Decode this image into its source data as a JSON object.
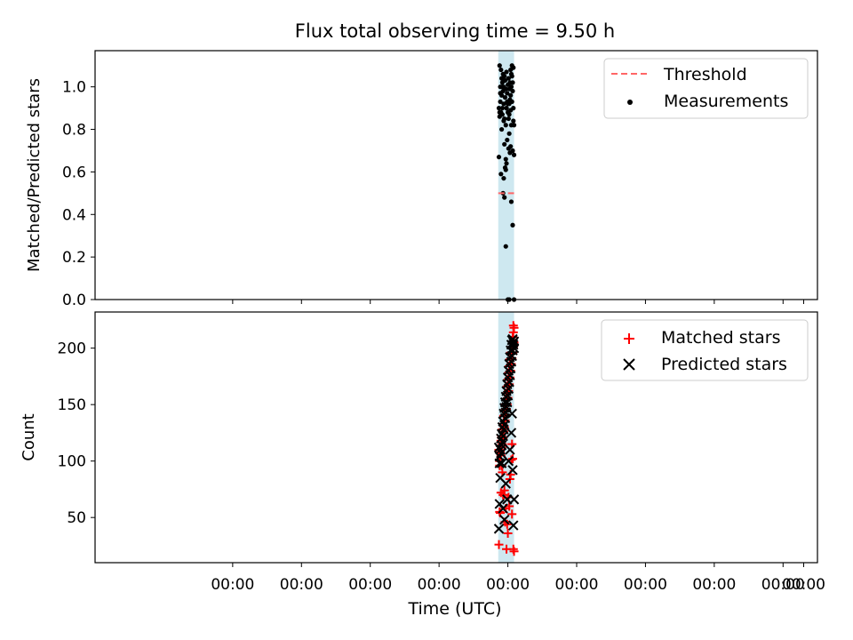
{
  "figure": {
    "title": "Flux total observing time = 9.50 h",
    "xlabel": "Time (UTC)",
    "xtick_labels": [
      "00:00",
      "00:00",
      "00:00",
      "00:00",
      "00:00",
      "00:00",
      "00:00",
      "00:00",
      "00:00",
      "00:00",
      "00:00"
    ]
  },
  "colors": {
    "shade": "#add8e6",
    "threshold": "#ff6666",
    "matched": "#ff0000",
    "predicted": "#000000",
    "measurements": "#000000"
  },
  "chart_data": [
    {
      "type": "scatter",
      "ylabel": "Matched/Predicted stars",
      "xlim": [
        -6,
        4.5
      ],
      "ylim": [
        0,
        1.17
      ],
      "yticks": [
        0.0,
        0.2,
        0.4,
        0.6,
        0.8,
        1.0
      ],
      "ytick_labels": [
        "0.0",
        "0.2",
        "0.4",
        "0.6",
        "0.8",
        "1.0"
      ],
      "shaded_span": [
        -0.14,
        0.09
      ],
      "legend": {
        "loc": "upper right",
        "entries": [
          "Threshold",
          "Measurements"
        ]
      },
      "threshold": {
        "name": "Threshold",
        "y": 0.5,
        "x": [
          -0.14,
          0.09
        ]
      },
      "series": [
        {
          "name": "Measurements",
          "x": [
            -0.13,
            -0.12,
            -0.12,
            -0.11,
            -0.11,
            -0.1,
            -0.1,
            -0.09,
            -0.09,
            -0.08,
            -0.08,
            -0.08,
            -0.07,
            -0.07,
            -0.06,
            -0.06,
            -0.05,
            -0.05,
            -0.05,
            -0.04,
            -0.04,
            -0.03,
            -0.03,
            -0.03,
            -0.02,
            -0.02,
            -0.02,
            -0.01,
            -0.01,
            0.0,
            0.0,
            0.0,
            0.01,
            0.01,
            0.02,
            0.02,
            0.02,
            0.03,
            0.03,
            0.04,
            0.04,
            0.04,
            0.05,
            0.05,
            0.06,
            0.06,
            0.07,
            0.07,
            0.08,
            0.08,
            0.09,
            0.09,
            -0.13,
            -0.1,
            -0.07,
            -0.05,
            -0.03,
            0.0,
            0.02,
            0.05,
            0.07,
            0.09,
            -0.04,
            -0.06,
            0.01,
            0.03,
            -0.09,
            -0.02,
            0.06,
            0.08,
            -0.11,
            -0.12,
            0.04,
            -0.06,
            -0.03,
            0.07,
            -0.01,
            0.05,
            -0.08,
            0.02
          ],
          "y": [
            0.9,
            1.1,
            0.86,
            1.0,
            0.93,
            1.08,
            0.88,
            1.04,
            0.96,
            1.02,
            0.9,
            0.87,
            1.06,
            0.98,
            1.0,
            0.92,
            1.05,
            0.85,
            0.73,
            1.03,
            0.95,
            0.99,
            0.82,
            0.66,
            0.64,
            1.07,
            0.9,
            0.97,
            0.75,
            0.92,
            0.88,
            1.01,
            0.85,
            1.04,
            0.99,
            0.87,
            0.78,
            1.02,
            0.94,
            1.08,
            0.96,
            0.89,
            1.0,
            0.82,
            1.05,
            0.93,
            0.98,
            0.7,
            1.09,
            0.9,
            0.68,
            0.82,
            0.67,
            0.59,
            0.5,
            0.48,
            0.25,
            0.0,
            0.0,
            0.46,
            0.35,
            0.0,
            0.62,
            0.84,
            0.71,
            0.69,
            0.8,
            0.9,
            1.1,
            0.84,
            0.97,
            0.88,
            0.72,
            0.57,
            0.61,
            1.02,
            0.93,
            1.06,
            1.0,
            0.92
          ]
        }
      ]
    },
    {
      "type": "scatter",
      "ylabel": "Count",
      "xlim": [
        -6,
        4.5
      ],
      "ylim": [
        10,
        232
      ],
      "yticks": [
        50,
        100,
        150,
        200
      ],
      "ytick_labels": [
        "50",
        "100",
        "150",
        "200"
      ],
      "shaded_span": [
        -0.14,
        0.09
      ],
      "legend": {
        "loc": "upper right",
        "entries": [
          "Matched stars",
          "Predicted stars"
        ]
      },
      "series": [
        {
          "name": "Matched stars",
          "marker": "+",
          "x": [
            -0.13,
            -0.12,
            -0.12,
            -0.11,
            -0.1,
            -0.1,
            -0.09,
            -0.09,
            -0.08,
            -0.08,
            -0.07,
            -0.07,
            -0.06,
            -0.06,
            -0.05,
            -0.05,
            -0.04,
            -0.04,
            -0.03,
            -0.03,
            -0.02,
            -0.02,
            -0.01,
            -0.01,
            0.0,
            0.0,
            0.01,
            0.01,
            0.02,
            0.02,
            0.03,
            0.03,
            0.04,
            0.04,
            0.05,
            0.05,
            0.06,
            0.06,
            0.07,
            0.07,
            0.08,
            0.08,
            0.09,
            0.09,
            -0.13,
            -0.12,
            -0.1,
            -0.08,
            -0.06,
            -0.04,
            -0.02,
            0.0,
            0.02,
            0.04,
            0.06,
            0.08,
            0.09,
            0.07,
            0.05,
            0.03,
            0.01,
            -0.01,
            -0.03,
            -0.05,
            -0.07,
            -0.09,
            -0.11,
            0.08,
            0.06
          ],
          "y": [
            110,
            100,
            96,
            108,
            118,
            105,
            122,
            112,
            128,
            115,
            133,
            120,
            140,
            126,
            145,
            130,
            150,
            136,
            155,
            141,
            160,
            146,
            166,
            150,
            172,
            156,
            178,
            162,
            184,
            168,
            190,
            174,
            196,
            180,
            201,
            186,
            206,
            191,
            210,
            196,
            214,
            201,
            218,
            205,
            26,
            55,
            72,
            90,
            70,
            46,
            22,
            36,
            60,
            88,
            53,
            22,
            20,
            102,
            101,
            84,
            68,
            44,
            58,
            74,
            70,
            96,
            54,
            220,
            115
          ]
        },
        {
          "name": "Predicted stars",
          "marker": "x",
          "x": [
            -0.13,
            -0.12,
            -0.12,
            -0.11,
            -0.1,
            -0.1,
            -0.09,
            -0.09,
            -0.08,
            -0.08,
            -0.07,
            -0.07,
            -0.06,
            -0.06,
            -0.05,
            -0.05,
            -0.04,
            -0.04,
            -0.03,
            -0.03,
            -0.02,
            -0.02,
            -0.01,
            -0.01,
            0.0,
            0.0,
            0.01,
            0.01,
            0.02,
            0.02,
            0.03,
            0.03,
            0.04,
            0.04,
            0.05,
            0.05,
            0.06,
            0.06,
            0.07,
            0.07,
            0.08,
            0.08,
            0.09,
            0.09,
            -0.13,
            -0.12,
            -0.11,
            -0.09,
            -0.07,
            -0.05,
            -0.03,
            -0.01,
            0.01,
            0.03,
            0.05,
            0.07,
            0.09,
            0.08,
            0.06
          ],
          "y": [
            112,
            104,
            98,
            110,
            120,
            107,
            124,
            114,
            130,
            117,
            135,
            122,
            142,
            128,
            147,
            132,
            152,
            138,
            157,
            143,
            162,
            148,
            168,
            152,
            174,
            158,
            180,
            164,
            186,
            170,
            192,
            176,
            198,
            182,
            203,
            188,
            207,
            193,
            208,
            198,
            205,
            203,
            200,
            206,
            40,
            62,
            85,
            98,
            58,
            48,
            80,
            66,
            100,
            110,
            125,
            92,
            66,
            43,
            142
          ]
        }
      ]
    }
  ]
}
